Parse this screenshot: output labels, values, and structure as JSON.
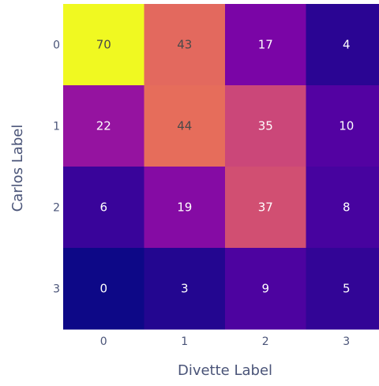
{
  "chart_data": {
    "type": "heatmap",
    "title": "",
    "xlabel": "Divette Label",
    "ylabel": "Carlos Label",
    "x_categories": [
      "0",
      "1",
      "2",
      "3"
    ],
    "y_categories": [
      "0",
      "1",
      "2",
      "3"
    ],
    "values": [
      [
        70,
        43,
        17,
        4
      ],
      [
        22,
        44,
        35,
        10
      ],
      [
        6,
        19,
        37,
        8
      ],
      [
        0,
        3,
        9,
        5
      ]
    ],
    "colorscale": "plasma",
    "zrange": [
      0,
      70
    ],
    "colorbar": false,
    "grid": false
  }
}
